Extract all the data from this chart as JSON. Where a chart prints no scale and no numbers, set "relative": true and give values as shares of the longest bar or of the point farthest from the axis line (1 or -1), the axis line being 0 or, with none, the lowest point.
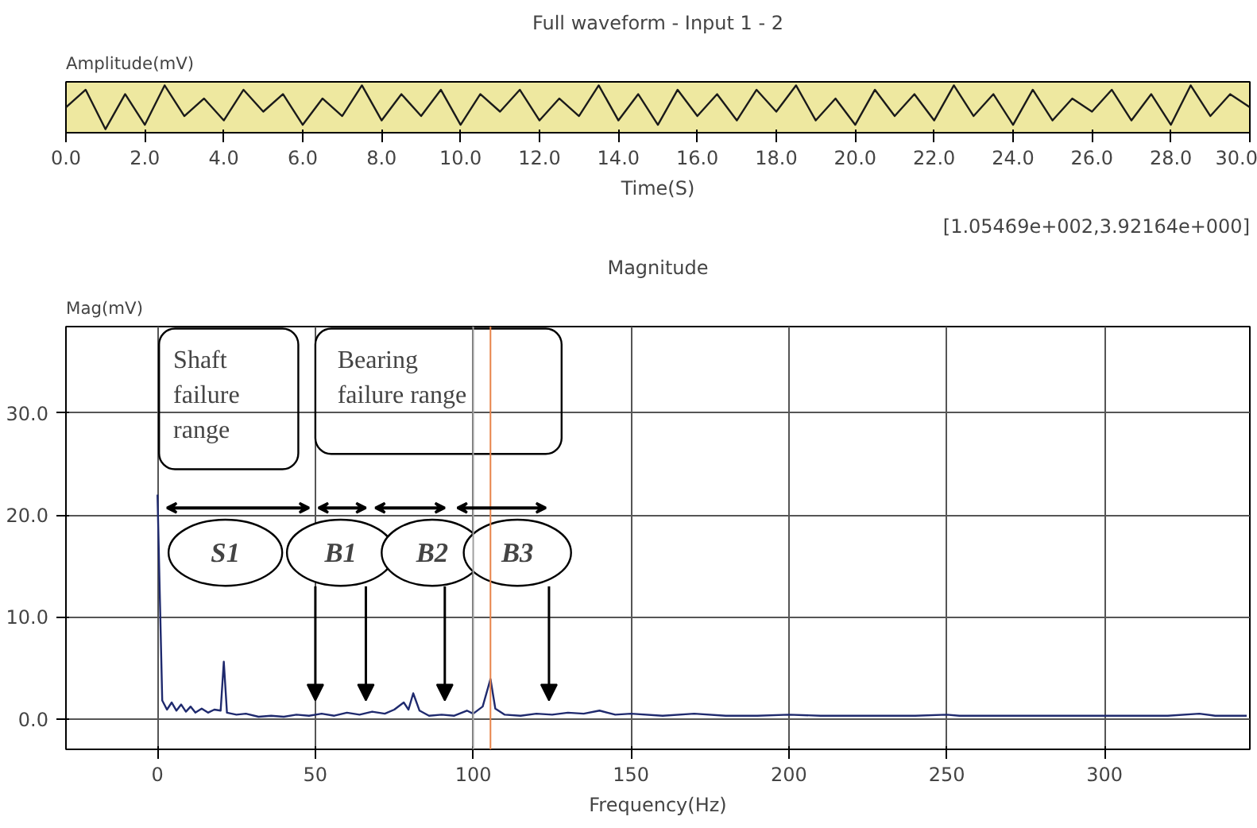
{
  "chart_data": [
    {
      "type": "line",
      "title": "Full waveform - Input 1 - 2",
      "ylabel": "Amplitude(mV)",
      "xlabel": "Time(S)",
      "relative": true,
      "tick_labels": "x",
      "grid": false,
      "xlim": [
        0,
        30
      ],
      "xticks": [
        {
          "value": 0,
          "label": "0.0"
        },
        {
          "value": 2,
          "label": "2.0"
        },
        {
          "value": 4,
          "label": "4.0"
        },
        {
          "value": 6,
          "label": "6.0"
        },
        {
          "value": 8,
          "label": "8.0"
        },
        {
          "value": 10,
          "label": "10.0"
        },
        {
          "value": 12,
          "label": "12.0"
        },
        {
          "value": 14,
          "label": "14.0"
        },
        {
          "value": 16,
          "label": "16.0"
        },
        {
          "value": 18,
          "label": "18.0"
        },
        {
          "value": 20,
          "label": "20.0"
        },
        {
          "value": 22,
          "label": "22.0"
        },
        {
          "value": 24,
          "label": "24.0"
        },
        {
          "value": 26,
          "label": "26.0"
        },
        {
          "value": 28,
          "label": "28.0"
        },
        {
          "value": 30,
          "label": "30.0"
        }
      ],
      "x": [
        0,
        0.5,
        1,
        1.5,
        2,
        2.5,
        3,
        3.5,
        4,
        4.5,
        5,
        5.5,
        6,
        6.5,
        7,
        7.5,
        8,
        8.5,
        9,
        9.5,
        10,
        10.5,
        11,
        11.5,
        12,
        12.5,
        13,
        13.5,
        14,
        14.5,
        15,
        15.5,
        16,
        16.5,
        17,
        17.5,
        18,
        18.5,
        19,
        19.5,
        20,
        20.5,
        21,
        21.5,
        22,
        22.5,
        23,
        23.5,
        24,
        24.5,
        25,
        25.5,
        26,
        26.5,
        27,
        27.5,
        28,
        28.5,
        29,
        29.5,
        30
      ],
      "series": [
        {
          "color": "#1a1a1a",
          "values": [
            0.5,
            0.9,
            0,
            0.8,
            0.1,
            1,
            0.3,
            0.7,
            0.2,
            0.9,
            0.4,
            0.8,
            0.1,
            0.7,
            0.3,
            1,
            0.2,
            0.8,
            0.3,
            0.9,
            0.1,
            0.8,
            0.4,
            0.9,
            0.2,
            0.7,
            0.3,
            1,
            0.2,
            0.8,
            0.1,
            0.9,
            0.3,
            0.8,
            0.2,
            0.9,
            0.4,
            1,
            0.2,
            0.7,
            0.1,
            0.9,
            0.3,
            0.8,
            0.2,
            1,
            0.3,
            0.8,
            0.1,
            0.9,
            0.2,
            0.7,
            0.4,
            0.9,
            0.2,
            0.8,
            0.1,
            1,
            0.3,
            0.8,
            0.5
          ]
        }
      ]
    },
    {
      "type": "line",
      "title": "Magnitude",
      "ylabel": "Mag(mV)",
      "xlabel": "Frequency(Hz)",
      "grid": true,
      "xlim": [
        -29,
        346
      ],
      "xticks": [
        0,
        50,
        100,
        150,
        200,
        250,
        300
      ],
      "ylim": [
        -3,
        38.5
      ],
      "yticks": [
        {
          "value": 0,
          "label": "0.0"
        },
        {
          "value": 10,
          "label": "10.0"
        },
        {
          "value": 20,
          "label": "20.0"
        },
        {
          "value": 30,
          "label": "30.0"
        }
      ],
      "x": [
        0,
        1.5,
        3,
        4.5,
        6,
        7.5,
        9,
        10.5,
        12,
        14,
        16,
        18,
        20,
        21,
        22,
        25,
        28,
        32,
        36,
        40,
        44,
        48,
        52,
        56,
        60,
        64,
        68,
        72,
        75,
        78,
        79.5,
        81,
        83,
        86,
        90,
        94,
        98,
        100,
        103,
        105.469,
        107,
        110,
        115,
        120,
        125,
        130,
        135,
        140,
        145,
        150,
        160,
        170,
        180,
        190,
        200,
        210,
        220,
        230,
        240,
        250,
        254,
        260,
        280,
        300,
        320,
        330,
        335,
        345
      ],
      "series": [
        {
          "color": "#1f2a6e",
          "values": [
            22,
            1.8,
            0.9,
            1.6,
            0.8,
            1.4,
            0.7,
            1.2,
            0.6,
            1.0,
            0.6,
            0.9,
            0.8,
            5.6,
            0.6,
            0.4,
            0.5,
            0.2,
            0.3,
            0.2,
            0.4,
            0.3,
            0.5,
            0.3,
            0.6,
            0.4,
            0.7,
            0.5,
            0.9,
            1.6,
            0.9,
            2.5,
            0.8,
            0.3,
            0.4,
            0.3,
            0.8,
            0.5,
            1.2,
            3.9,
            1.0,
            0.4,
            0.3,
            0.5,
            0.4,
            0.6,
            0.5,
            0.8,
            0.4,
            0.5,
            0.3,
            0.5,
            0.3,
            0.3,
            0.4,
            0.3,
            0.3,
            0.3,
            0.3,
            0.4,
            0.3,
            0.3,
            0.3,
            0.3,
            0.3,
            0.5,
            0.3,
            0.3
          ]
        }
      ],
      "ref_lines": [
        {
          "axis": "x",
          "value": 100,
          "color": "#a0a0a0"
        },
        {
          "axis": "x",
          "value": 105.469,
          "color": "#e8844a"
        }
      ],
      "annotations": [
        "[1.05469e+002,3.92164e+000]",
        "Shaft\nfailure\nrange",
        "Bearing\nfailure range",
        "S1",
        "B1",
        "B2",
        "B3"
      ]
    }
  ]
}
